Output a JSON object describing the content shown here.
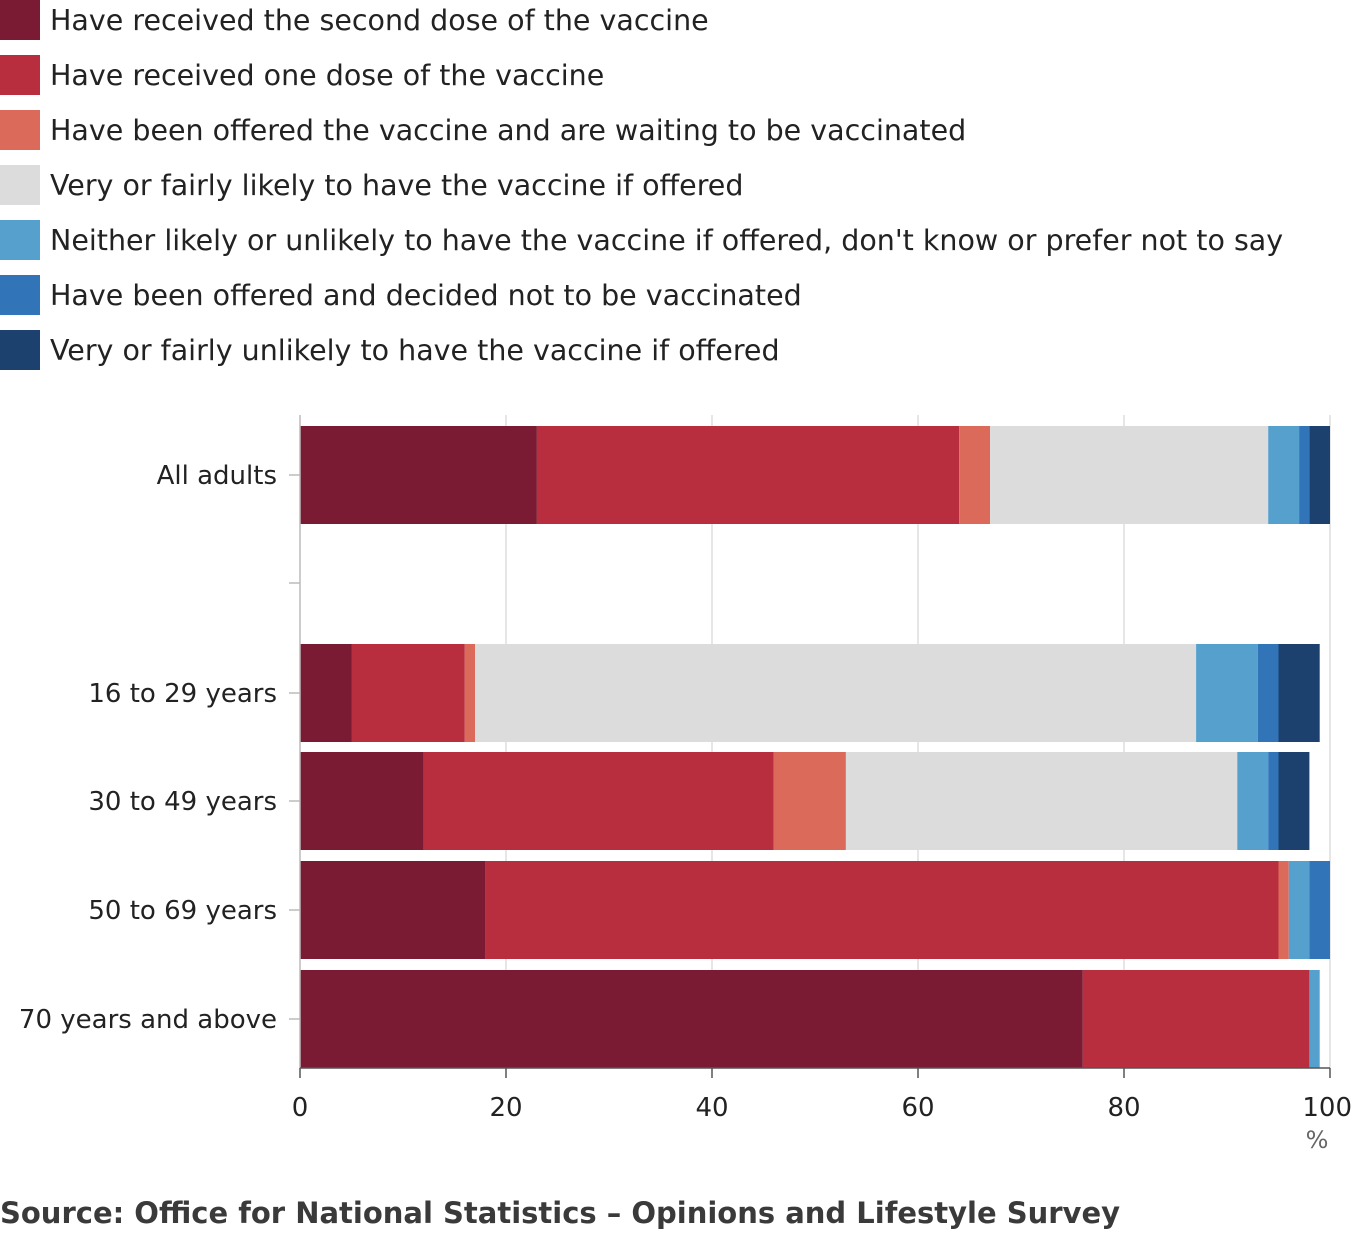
{
  "chart_data": {
    "type": "bar",
    "orientation": "horizontal",
    "stacked": true,
    "categories": [
      "All adults",
      "",
      "16 to 29 years",
      "30 to 49 years",
      "50 to 69 years",
      "70 years and above"
    ],
    "series": [
      {
        "name": "Have received the second dose of the vaccine",
        "color": "#7a1a33",
        "values": [
          23,
          null,
          5,
          12,
          18,
          76
        ]
      },
      {
        "name": "Have received one dose of the vaccine",
        "color": "#b82e3f",
        "values": [
          41,
          null,
          11,
          34,
          77,
          22
        ]
      },
      {
        "name": "Have been offered the vaccine and are waiting to be vaccinated",
        "color": "#dc6a5a",
        "values": [
          3,
          null,
          1,
          7,
          1,
          0
        ]
      },
      {
        "name": "Very or fairly likely to have the vaccine if offered",
        "color": "#dcdcdc",
        "values": [
          27,
          null,
          70,
          38,
          0,
          0
        ]
      },
      {
        "name": "Neither likely or unlikely to have the vaccine if offered, don't know or prefer not to say",
        "color": "#55a0cc",
        "values": [
          3,
          null,
          6,
          3,
          2,
          1
        ]
      },
      {
        "name": "Have been offered and decided not to be vaccinated",
        "color": "#3274b8",
        "values": [
          1,
          null,
          2,
          1,
          2,
          0
        ]
      },
      {
        "name": "Very or fairly unlikely to have the vaccine if offered",
        "color": "#1d416e",
        "values": [
          2,
          null,
          4,
          3,
          0,
          0
        ]
      }
    ],
    "xlim": [
      0,
      100
    ],
    "xticks": [
      "0",
      "20",
      "40",
      "60",
      "80",
      "100"
    ],
    "xunit": "%",
    "grid": true,
    "legend_position": "top"
  },
  "source": "Source: Office for National Statistics – Opinions and Lifestyle Survey"
}
